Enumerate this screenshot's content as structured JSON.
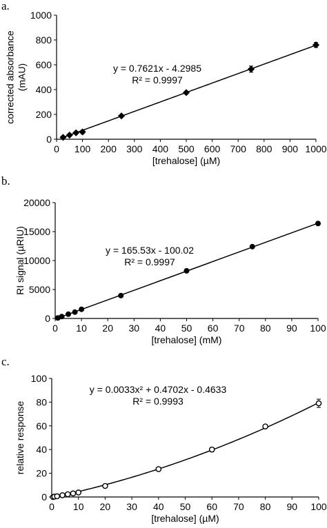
{
  "chart_data": [
    {
      "panel_label": "a.",
      "type": "scatter",
      "fit": "linear",
      "ylabel_lines": [
        "corrected absorbance",
        "(mAU)"
      ],
      "xlabel": "[trehalose] (µM)",
      "xlim": [
        0,
        1000
      ],
      "ylim": [
        0,
        1000
      ],
      "xticks": [
        0,
        100,
        200,
        300,
        400,
        500,
        600,
        700,
        800,
        900,
        1000
      ],
      "yticks": [
        0,
        200,
        400,
        600,
        800,
        1000
      ],
      "equation": "y = 0.7621x - 4.2985",
      "r2": "R² = 0.9997",
      "coefficients": [
        0,
        0.7621,
        -4.2985
      ],
      "marker": "filled-diamond",
      "points": [
        {
          "x": 25,
          "y": 15,
          "err": 0
        },
        {
          "x": 50,
          "y": 33,
          "err": 0
        },
        {
          "x": 75,
          "y": 52,
          "err": 0
        },
        {
          "x": 100,
          "y": 59,
          "err": 14
        },
        {
          "x": 250,
          "y": 188,
          "err": 8
        },
        {
          "x": 500,
          "y": 376,
          "err": 10
        },
        {
          "x": 750,
          "y": 565,
          "err": 25
        },
        {
          "x": 1000,
          "y": 760,
          "err": 20
        }
      ]
    },
    {
      "panel_label": "b.",
      "type": "scatter",
      "fit": "linear",
      "ylabel_lines": [
        "RI signal (µRIU)"
      ],
      "xlabel": "[trehalose] (mM)",
      "xlim": [
        0,
        100
      ],
      "ylim": [
        0,
        20000
      ],
      "xticks": [
        0,
        10,
        20,
        30,
        40,
        50,
        60,
        70,
        80,
        90,
        100
      ],
      "yticks": [
        0,
        5000,
        10000,
        15000,
        20000
      ],
      "equation": "y = 165.53x - 100.02",
      "r2": "R² = 0.9997",
      "coefficients": [
        0,
        165.53,
        -100.02
      ],
      "marker": "filled-circle",
      "points": [
        {
          "x": 1,
          "y": 90,
          "err": 0
        },
        {
          "x": 2.5,
          "y": 320,
          "err": 0
        },
        {
          "x": 5,
          "y": 740,
          "err": 0
        },
        {
          "x": 7.5,
          "y": 1100,
          "err": 0
        },
        {
          "x": 10,
          "y": 1580,
          "err": 0
        },
        {
          "x": 25,
          "y": 3950,
          "err": 0
        },
        {
          "x": 50,
          "y": 8230,
          "err": 0
        },
        {
          "x": 75,
          "y": 12400,
          "err": 0
        },
        {
          "x": 100,
          "y": 16400,
          "err": 0
        }
      ]
    },
    {
      "panel_label": "c.",
      "type": "scatter",
      "fit": "quadratic",
      "ylabel_lines": [
        "relative response"
      ],
      "xlabel": "[trehalose] (µM)",
      "xlim": [
        0,
        100
      ],
      "ylim": [
        0,
        100
      ],
      "xticks": [
        0,
        10,
        20,
        30,
        40,
        50,
        60,
        70,
        80,
        90,
        100
      ],
      "yticks": [
        0,
        20,
        40,
        60,
        80,
        100
      ],
      "equation": "y = 0.0033x² + 0.4702x - 0.4633",
      "r2": "R² = 0.9993",
      "coefficients": [
        0.0033,
        0.4702,
        -0.4633
      ],
      "marker": "open-circle",
      "points": [
        {
          "x": 0.5,
          "y": 0,
          "err": 0
        },
        {
          "x": 1,
          "y": 0.3,
          "err": 0
        },
        {
          "x": 2,
          "y": 0.6,
          "err": 0
        },
        {
          "x": 4,
          "y": 1.5,
          "err": 0
        },
        {
          "x": 6,
          "y": 2.3,
          "err": 0
        },
        {
          "x": 8,
          "y": 3.0,
          "err": 0
        },
        {
          "x": 10,
          "y": 3.8,
          "err": 0
        },
        {
          "x": 20,
          "y": 9.3,
          "err": 0.8
        },
        {
          "x": 40,
          "y": 23.5,
          "err": 1.2
        },
        {
          "x": 60,
          "y": 40,
          "err": 1.8
        },
        {
          "x": 80,
          "y": 59.5,
          "err": 1.5
        },
        {
          "x": 100,
          "y": 79,
          "err": 3.5
        }
      ]
    }
  ]
}
